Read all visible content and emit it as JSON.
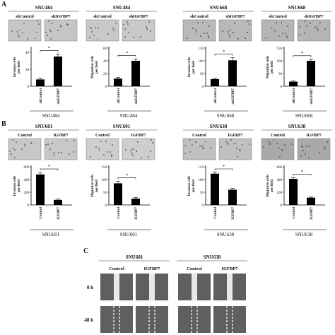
{
  "panel_labels": {
    "a": "A",
    "b": "B",
    "c": "C"
  },
  "chart_data": [
    {
      "type": "bar",
      "panel": "A",
      "title": "SNU484",
      "image_labels": [
        "shControl",
        "shIGFBP7"
      ],
      "categories": [
        "shControl",
        "shIGFBP7"
      ],
      "values": [
        8,
        35
      ],
      "errors": [
        1.5,
        3
      ],
      "ylabel": "Invasion cells per field",
      "yticks": [
        0,
        20,
        40
      ],
      "ylim": [
        0,
        45
      ],
      "xlabel": "SNU484",
      "significance": "*",
      "colors": {
        "bar": "#000000",
        "image": "#c6c6c6"
      }
    },
    {
      "type": "bar",
      "panel": "A",
      "title": "SNU484",
      "image_labels": [
        "shControl",
        "shIGFBP7"
      ],
      "categories": [
        "shControl",
        "shIGFBP7"
      ],
      "values": [
        12,
        40
      ],
      "errors": [
        2,
        3
      ],
      "ylabel": "Migration cells per field",
      "yticks": [
        0,
        20,
        40,
        60
      ],
      "ylim": [
        0,
        60
      ],
      "xlabel": "SNU484",
      "significance": "*",
      "colors": {
        "bar": "#000000",
        "image": "#c9c9c9"
      }
    },
    {
      "type": "bar",
      "panel": "A",
      "title": "SNU668",
      "image_labels": [
        "shControl",
        "shIGFBP7"
      ],
      "categories": [
        "shControl",
        "shIGFBP7"
      ],
      "values": [
        28,
        102
      ],
      "errors": [
        4,
        10
      ],
      "ylabel": "Invasion cells per field",
      "yticks": [
        0,
        50,
        100,
        150
      ],
      "ylim": [
        0,
        150
      ],
      "xlabel": "SNU668",
      "significance": "*",
      "colors": {
        "bar": "#000000",
        "image": "#b9b9b9"
      }
    },
    {
      "type": "bar",
      "panel": "A",
      "title": "SNU668",
      "image_labels": [
        "shControl",
        "shIGFBP7"
      ],
      "categories": [
        "shControl",
        "shIGFBP7"
      ],
      "values": [
        18,
        100
      ],
      "errors": [
        3,
        6
      ],
      "ylabel": "Migration cells per field",
      "yticks": [
        0,
        50,
        100,
        150
      ],
      "ylim": [
        0,
        150
      ],
      "xlabel": "SNU668",
      "significance": "*",
      "colors": {
        "bar": "#000000",
        "image": "#b5b5b5"
      }
    },
    {
      "type": "bar",
      "panel": "B",
      "title": "SNU601",
      "image_labels": [
        "Control",
        "IGFBP7"
      ],
      "categories": [
        "Control",
        "IGFBP7"
      ],
      "values": [
        480,
        80
      ],
      "errors": [
        30,
        12
      ],
      "ylabel": "Invasion cells per field",
      "yticks": [
        0,
        200,
        400,
        600
      ],
      "ylim": [
        0,
        600
      ],
      "xlabel": "SNU601",
      "significance": "*",
      "colors": {
        "bar": "#000000",
        "image": "#c8c8c8"
      }
    },
    {
      "type": "bar",
      "panel": "B",
      "title": "SNU601",
      "image_labels": [
        "Control",
        "IGFBP7"
      ],
      "categories": [
        "Control",
        "IGFBP7"
      ],
      "values": [
        85,
        25
      ],
      "errors": [
        8,
        4
      ],
      "ylabel": "Migration cells per field",
      "yticks": [
        0,
        50,
        100,
        150
      ],
      "ylim": [
        0,
        150
      ],
      "xlabel": "SNU601",
      "significance": "*",
      "colors": {
        "bar": "#000000",
        "image": "#cecece"
      }
    },
    {
      "type": "bar",
      "panel": "B",
      "title": "SNU638",
      "image_labels": [
        "Control",
        "IGFBP7"
      ],
      "categories": [
        "Control",
        "IGFBP7"
      ],
      "values": [
        123,
        60
      ],
      "errors": [
        7,
        5
      ],
      "ylabel": "Invasion cells per field",
      "yticks": [
        0,
        50,
        100,
        150
      ],
      "ylim": [
        0,
        150
      ],
      "xlabel": "SNU638",
      "significance": "*",
      "colors": {
        "bar": "#000000",
        "image": "#c0c0c0"
      }
    },
    {
      "type": "bar",
      "panel": "B",
      "title": "SNU638",
      "image_labels": [
        "Control",
        "IGFBP7"
      ],
      "categories": [
        "Control",
        "IGFBP7"
      ],
      "values": [
        410,
        115
      ],
      "errors": [
        20,
        10
      ],
      "ylabel": "Migration cells per field",
      "yticks": [
        0,
        200,
        400,
        600
      ],
      "ylim": [
        0,
        600
      ],
      "xlabel": "SNU638",
      "significance": "*",
      "colors": {
        "bar": "#000000",
        "image": "#a9a9a9"
      }
    }
  ],
  "wound_healing": {
    "groups": [
      {
        "title": "SNU601",
        "columns": [
          "Control",
          "IGFBP7"
        ]
      },
      {
        "title": "SNU638",
        "columns": [
          "Control",
          "IGFBP7"
        ]
      }
    ],
    "rows": [
      "0 h",
      "48 h"
    ],
    "colors": {
      "image": "#5f5f5f",
      "gap": "#e8e8e8",
      "dash": "#ffffff"
    }
  }
}
